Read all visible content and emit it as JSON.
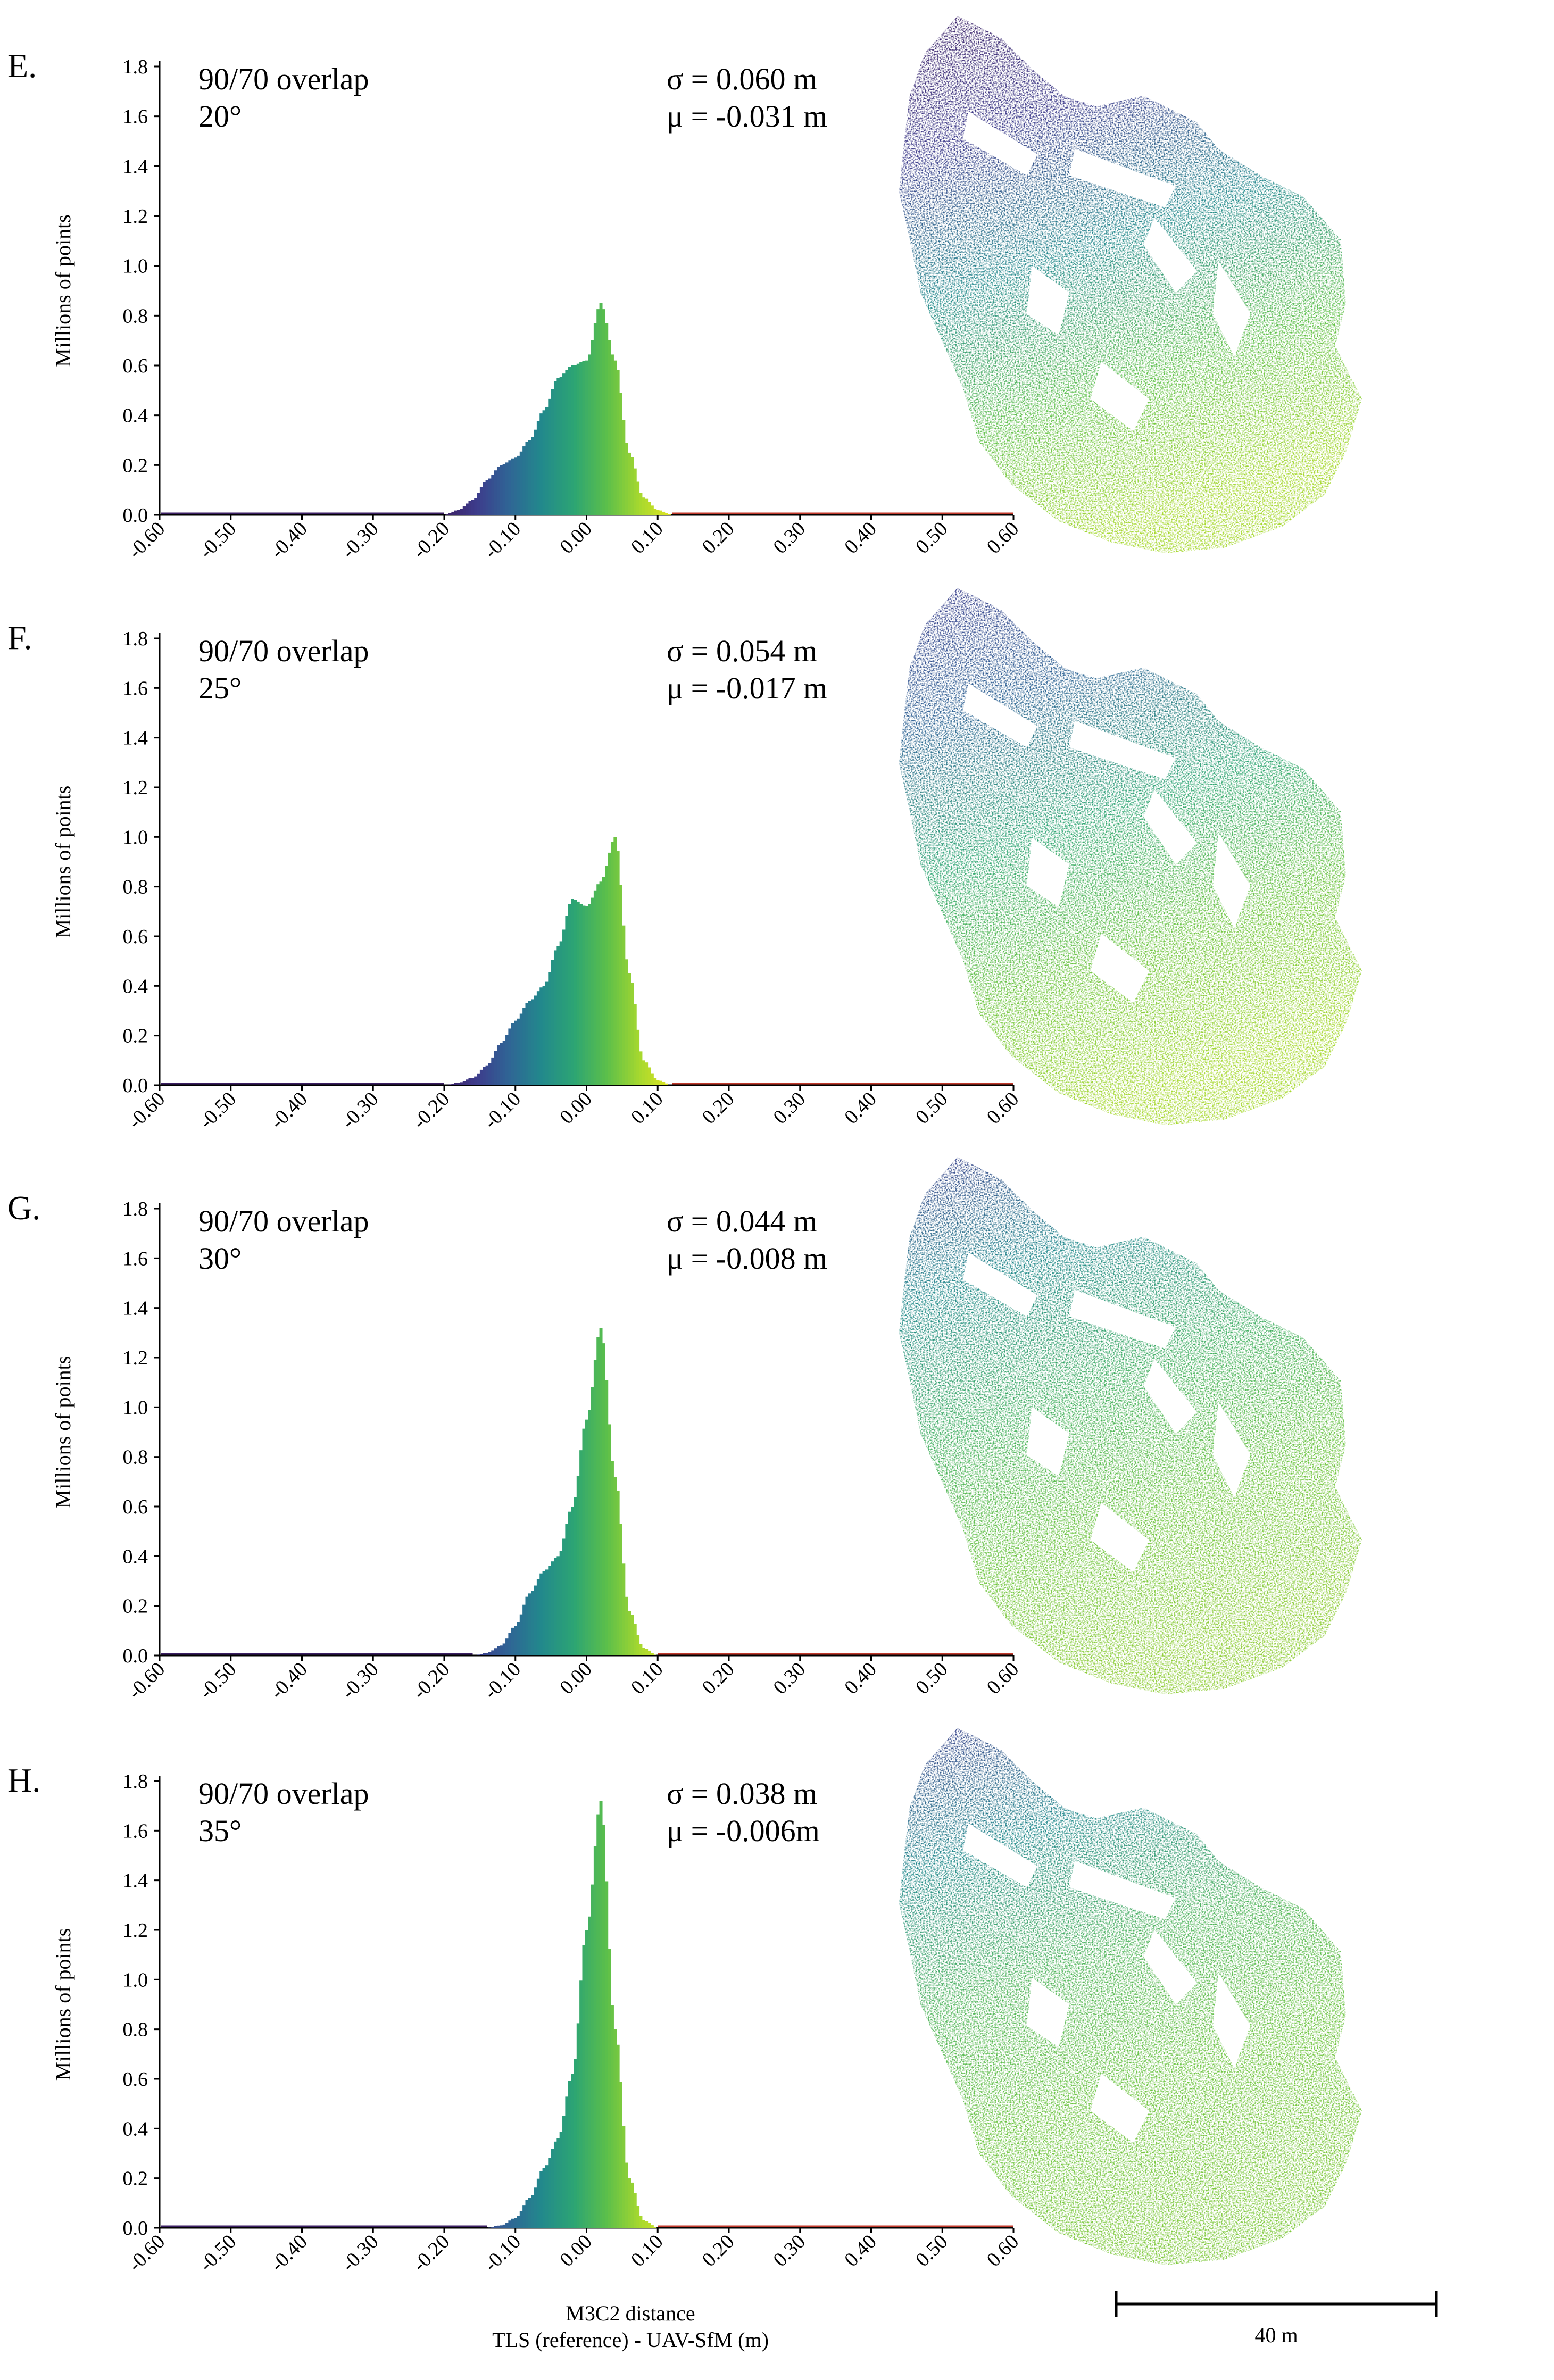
{
  "figure": {
    "x_axis_label_line1": "M3C2 distance",
    "x_axis_label_line2": "TLS (reference) - UAV-SfM (m)",
    "y_axis_label": "Millions of points",
    "scale_bar_label": "40 m"
  },
  "colors": {
    "ramp": [
      "#3b1f63",
      "#3d3c8c",
      "#2f6595",
      "#22898c",
      "#2da573",
      "#5cbf4a",
      "#a6d82f",
      "#e2e620"
    ],
    "axis": "#000000",
    "baseline_tail": "#c0392b"
  },
  "chart_data": [
    {
      "type": "bar",
      "panel": "E.",
      "condition_line1": "90/70 overlap",
      "condition_line2": "20°",
      "sigma_text": "σ = 0.060 m",
      "mu_text": "μ = -0.031 m",
      "xlabel": "M3C2 distance TLS (reference) - UAV-SfM (m)",
      "ylabel": "Millions of points",
      "xlim": [
        -0.6,
        0.6
      ],
      "ylim": [
        0.0,
        1.8
      ],
      "x_ticks": [
        "-0.60",
        "-0.50",
        "-0.40",
        "-0.30",
        "-0.20",
        "-0.10",
        "0.00",
        "0.10",
        "0.20",
        "0.30",
        "0.40",
        "0.50",
        "0.60"
      ],
      "y_ticks": [
        "0.0",
        "0.2",
        "0.4",
        "0.6",
        "0.8",
        "1.0",
        "1.2",
        "1.4",
        "1.6",
        "1.8"
      ],
      "x": [
        -0.2,
        -0.18,
        -0.16,
        -0.14,
        -0.12,
        -0.1,
        -0.08,
        -0.06,
        -0.04,
        -0.02,
        0.0,
        0.02,
        0.04,
        0.06,
        0.08,
        0.1,
        0.12
      ],
      "values": [
        0.0,
        0.02,
        0.06,
        0.14,
        0.2,
        0.23,
        0.3,
        0.42,
        0.55,
        0.6,
        0.62,
        0.85,
        0.62,
        0.25,
        0.07,
        0.02,
        0.0
      ]
    },
    {
      "type": "bar",
      "panel": "F.",
      "condition_line1": "90/70 overlap",
      "condition_line2": "25°",
      "sigma_text": "σ = 0.054 m",
      "mu_text": "μ = -0.017 m",
      "xlabel": "M3C2 distance TLS (reference) - UAV-SfM (m)",
      "ylabel": "Millions of points",
      "xlim": [
        -0.6,
        0.6
      ],
      "ylim": [
        0.0,
        1.8
      ],
      "x_ticks": [
        "-0.60",
        "-0.50",
        "-0.40",
        "-0.30",
        "-0.20",
        "-0.10",
        "0.00",
        "0.10",
        "0.20",
        "0.30",
        "0.40",
        "0.50",
        "0.60"
      ],
      "y_ticks": [
        "0.0",
        "0.2",
        "0.4",
        "0.6",
        "0.8",
        "1.0",
        "1.2",
        "1.4",
        "1.6",
        "1.8"
      ],
      "x": [
        -0.2,
        -0.18,
        -0.16,
        -0.14,
        -0.12,
        -0.1,
        -0.08,
        -0.06,
        -0.04,
        -0.02,
        0.0,
        0.02,
        0.04,
        0.06,
        0.08,
        0.1,
        0.12
      ],
      "values": [
        0.0,
        0.01,
        0.03,
        0.08,
        0.17,
        0.26,
        0.34,
        0.4,
        0.56,
        0.75,
        0.72,
        0.82,
        1.0,
        0.45,
        0.1,
        0.02,
        0.0
      ]
    },
    {
      "type": "bar",
      "panel": "G.",
      "condition_line1": "90/70 overlap",
      "condition_line2": "30°",
      "sigma_text": "σ = 0.044 m",
      "mu_text": "μ = -0.008 m",
      "xlabel": "M3C2 distance TLS (reference) - UAV-SfM (m)",
      "ylabel": "Millions of points",
      "xlim": [
        -0.6,
        0.6
      ],
      "ylim": [
        0.0,
        1.8
      ],
      "x_ticks": [
        "-0.60",
        "-0.50",
        "-0.40",
        "-0.30",
        "-0.20",
        "-0.10",
        "0.00",
        "0.10",
        "0.20",
        "0.30",
        "0.40",
        "0.50",
        "0.60"
      ],
      "y_ticks": [
        "0.0",
        "0.2",
        "0.4",
        "0.6",
        "0.8",
        "1.0",
        "1.2",
        "1.4",
        "1.6",
        "1.8"
      ],
      "x": [
        -0.16,
        -0.14,
        -0.12,
        -0.1,
        -0.08,
        -0.06,
        -0.04,
        -0.02,
        0.0,
        0.02,
        0.04,
        0.06,
        0.08,
        0.1
      ],
      "values": [
        0.0,
        0.01,
        0.04,
        0.12,
        0.25,
        0.34,
        0.4,
        0.6,
        0.95,
        1.32,
        0.72,
        0.18,
        0.03,
        0.0
      ]
    },
    {
      "type": "bar",
      "panel": "H.",
      "condition_line1": "90/70 overlap",
      "condition_line2": "35°",
      "sigma_text": "σ = 0.038 m",
      "mu_text": "μ = -0.006m",
      "xlabel": "M3C2 distance TLS (reference) - UAV-SfM (m)",
      "ylabel": "Millions of points",
      "xlim": [
        -0.6,
        0.6
      ],
      "ylim": [
        0.0,
        1.8
      ],
      "x_ticks": [
        "-0.60",
        "-0.50",
        "-0.40",
        "-0.30",
        "-0.20",
        "-0.10",
        "0.00",
        "0.10",
        "0.20",
        "0.30",
        "0.40",
        "0.50",
        "0.60"
      ],
      "y_ticks": [
        "0.0",
        "0.2",
        "0.4",
        "0.6",
        "0.8",
        "1.0",
        "1.2",
        "1.4",
        "1.6",
        "1.8"
      ],
      "x": [
        -0.14,
        -0.12,
        -0.1,
        -0.08,
        -0.06,
        -0.04,
        -0.02,
        0.0,
        0.02,
        0.04,
        0.06,
        0.08,
        0.1
      ],
      "values": [
        0.0,
        0.01,
        0.04,
        0.12,
        0.24,
        0.36,
        0.62,
        1.2,
        1.72,
        0.8,
        0.2,
        0.03,
        0.0
      ]
    }
  ]
}
